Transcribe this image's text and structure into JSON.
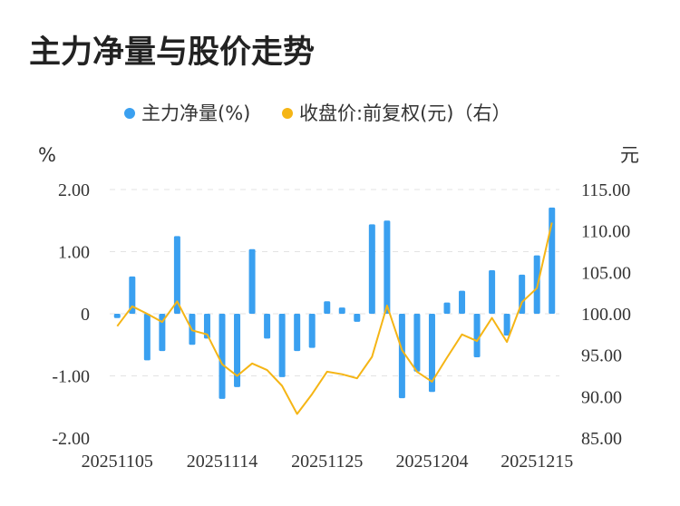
{
  "chart_data": {
    "type": "bar+line",
    "title": "主力净量与股价走势",
    "legend_position": "top-center",
    "grid": true,
    "y_left_unit": "%",
    "y_right_unit": "元",
    "y_left_ticks": [
      "2.00",
      "1.00",
      "0",
      "-1.00",
      "-2.00"
    ],
    "y_right_ticks": [
      "115.00",
      "110.00",
      "105.00",
      "100.00",
      "95.00",
      "90.00",
      "85.00"
    ],
    "ylim_left": [
      -2,
      2
    ],
    "ylim_right": [
      85,
      115
    ],
    "x_tick_labels": [
      "20251105",
      "20251114",
      "20251125",
      "20251204",
      "20251215"
    ],
    "x_tick_indices": [
      0,
      7,
      14,
      21,
      28
    ],
    "colors": {
      "bar": "#3aa0f0",
      "line": "#f5b515"
    },
    "series": [
      {
        "name": "主力净量(%)",
        "type": "bar",
        "axis": "left",
        "values": [
          -0.07,
          0.6,
          -0.75,
          -0.6,
          1.25,
          -0.5,
          -0.4,
          -1.37,
          -1.18,
          1.04,
          -0.4,
          -1.02,
          -0.6,
          -0.55,
          0.2,
          0.1,
          -0.13,
          1.44,
          1.5,
          -1.36,
          -0.93,
          -1.26,
          0.18,
          0.37,
          -0.7,
          0.7,
          -0.35,
          0.63,
          0.94,
          1.71
        ]
      },
      {
        "name": "收盘价:前复权(元)（右）",
        "type": "line",
        "axis": "right",
        "values": [
          98.5,
          100.9,
          100.0,
          99.0,
          101.5,
          98.0,
          97.5,
          93.9,
          92.5,
          94.0,
          93.2,
          91.3,
          87.9,
          90.3,
          93.0,
          92.7,
          92.2,
          94.8,
          101.0,
          95.6,
          93.0,
          91.8,
          94.7,
          97.5,
          96.7,
          99.5,
          96.6,
          101.4,
          103.1,
          111.0
        ]
      }
    ]
  }
}
